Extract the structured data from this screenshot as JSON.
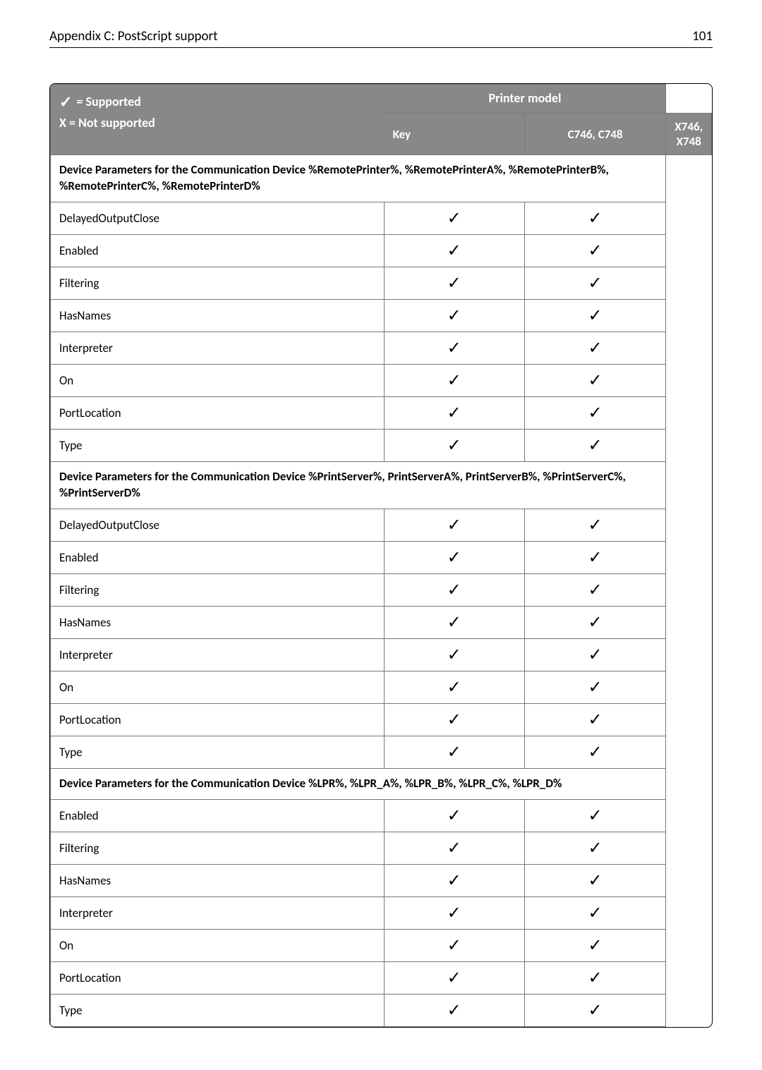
{
  "header": {
    "title": "Appendix C: PostScript support",
    "page_number": "101"
  },
  "legend": {
    "supported_symbol": "✓",
    "supported_label": " = Supported",
    "not_supported_label": "X = Not supported"
  },
  "table_header": {
    "printer_model_label": "Printer model",
    "key_label": "Key",
    "col1_label": "C746, C748",
    "col2_label": "X746, X748"
  },
  "check_symbol": "✓",
  "sections": [
    {
      "title": "Device Parameters for the Communication Device %RemotePrinter%, %RemotePrinterA%, %RemotePrinterB%, %RemotePrinterC%, %RemotePrinterD%",
      "rows": [
        {
          "key": "DelayedOutputClose",
          "c1": true,
          "c2": true
        },
        {
          "key": "Enabled",
          "c1": true,
          "c2": true
        },
        {
          "key": "Filtering",
          "c1": true,
          "c2": true
        },
        {
          "key": "HasNames",
          "c1": true,
          "c2": true
        },
        {
          "key": "Interpreter",
          "c1": true,
          "c2": true
        },
        {
          "key": "On",
          "c1": true,
          "c2": true
        },
        {
          "key": "PortLocation",
          "c1": true,
          "c2": true
        },
        {
          "key": "Type",
          "c1": true,
          "c2": true
        }
      ]
    },
    {
      "title": "Device Parameters for the Communication Device %PrintServer%, PrintServerA%, PrintServerB%, %PrintServerC%, %PrintServerD%",
      "rows": [
        {
          "key": "DelayedOutputClose",
          "c1": true,
          "c2": true
        },
        {
          "key": "Enabled",
          "c1": true,
          "c2": true
        },
        {
          "key": "Filtering",
          "c1": true,
          "c2": true
        },
        {
          "key": "HasNames",
          "c1": true,
          "c2": true
        },
        {
          "key": "Interpreter",
          "c1": true,
          "c2": true
        },
        {
          "key": "On",
          "c1": true,
          "c2": true
        },
        {
          "key": "PortLocation",
          "c1": true,
          "c2": true
        },
        {
          "key": "Type",
          "c1": true,
          "c2": true
        }
      ]
    },
    {
      "title": "Device Parameters for the Communication Device %LPR%, %LPR_A%, %LPR_B%, %LPR_C%, %LPR_D%",
      "rows": [
        {
          "key": "Enabled",
          "c1": true,
          "c2": true
        },
        {
          "key": "Filtering",
          "c1": true,
          "c2": true
        },
        {
          "key": "HasNames",
          "c1": true,
          "c2": true
        },
        {
          "key": "Interpreter",
          "c1": true,
          "c2": true
        },
        {
          "key": "On",
          "c1": true,
          "c2": true
        },
        {
          "key": "PortLocation",
          "c1": true,
          "c2": true
        },
        {
          "key": "Type",
          "c1": true,
          "c2": true
        }
      ]
    }
  ]
}
